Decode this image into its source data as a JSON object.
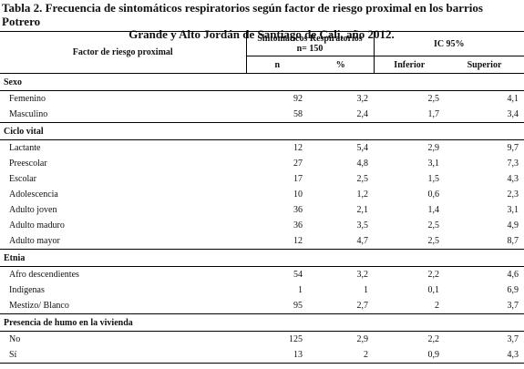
{
  "caption": {
    "line1": "Tabla 2. Frecuencia de sintomáticos respiratorios según factor de riesgo proximal en los barrios Potrero",
    "line2": "Grande y Alto Jordán de Santiago de Cali, año 2012."
  },
  "header": {
    "factor": "Factor de riesgo proximal",
    "sintomaticos_line1": "Sintomáticos Respiratorios",
    "sintomaticos_line2": "n= 150",
    "ic": "IC 95%",
    "n": "n",
    "pct": "%",
    "inferior": "Inferior",
    "superior": "Superior"
  },
  "sections": [
    {
      "title": "Sexo",
      "rows": [
        {
          "label": "Femenino",
          "n": "92",
          "pct": "3,2",
          "inf": "2,5",
          "sup": "4,1"
        },
        {
          "label": "Masculino",
          "n": "58",
          "pct": "2,4",
          "inf": "1,7",
          "sup": "3,4"
        }
      ]
    },
    {
      "title": "Ciclo vital",
      "rows": [
        {
          "label": "Lactante",
          "n": "12",
          "pct": "5,4",
          "inf": "2,9",
          "sup": "9,7"
        },
        {
          "label": "Preescolar",
          "n": "27",
          "pct": "4,8",
          "inf": "3,1",
          "sup": "7,3"
        },
        {
          "label": "Escolar",
          "n": "17",
          "pct": "2,5",
          "inf": "1,5",
          "sup": "4,3"
        },
        {
          "label": "Adolescencia",
          "n": "10",
          "pct": "1,2",
          "inf": "0,6",
          "sup": "2,3"
        },
        {
          "label": "Adulto joven",
          "n": "36",
          "pct": "2,1",
          "inf": "1,4",
          "sup": "3,1"
        },
        {
          "label": "Adulto maduro",
          "n": "36",
          "pct": "3,5",
          "inf": "2,5",
          "sup": "4,9"
        },
        {
          "label": "Adulto mayor",
          "n": "12",
          "pct": "4,7",
          "inf": "2,5",
          "sup": "8,7"
        }
      ]
    },
    {
      "title": "Etnia",
      "rows": [
        {
          "label": "Afro descendientes",
          "n": "54",
          "pct": "3,2",
          "inf": "2,2",
          "sup": "4,6"
        },
        {
          "label": "Indígenas",
          "n": "1",
          "pct": "1",
          "inf": "0,1",
          "sup": "6,9"
        },
        {
          "label": "Mestizo/ Blanco",
          "n": "95",
          "pct": "2,7",
          "inf": "2",
          "sup": "3,7"
        }
      ]
    },
    {
      "title": "Presencia de humo en la vivienda",
      "rows": [
        {
          "label": "No",
          "n": "125",
          "pct": "2,9",
          "inf": "2,2",
          "sup": "3,7"
        },
        {
          "label": "Sí",
          "n": "13",
          "pct": "2",
          "inf": "0,9",
          "sup": "4,3"
        }
      ]
    }
  ]
}
